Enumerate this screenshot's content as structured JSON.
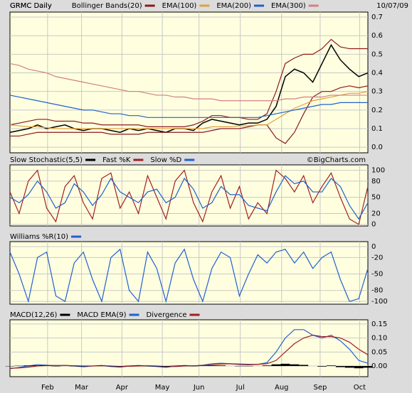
{
  "chart_data": [
    {
      "type": "line",
      "title": "GRMC Daily",
      "date": "10/07/09",
      "xlim": [
        0,
        39
      ],
      "ylim": [
        -0.03,
        0.727
      ],
      "yticks": [
        {
          "value": 0,
          "label": "0.0"
        },
        0.1,
        0.2,
        0.3,
        0.4,
        0.5,
        0.6,
        0.7
      ],
      "grid": true,
      "series": [
        {
          "name": "GRMC Daily",
          "color": "#000000",
          "values": [
            0.08,
            0.09,
            0.1,
            0.12,
            0.1,
            0.11,
            0.12,
            0.1,
            0.09,
            0.1,
            0.1,
            0.09,
            0.08,
            0.1,
            0.09,
            0.1,
            0.09,
            0.08,
            0.1,
            0.1,
            0.09,
            0.13,
            0.15,
            0.14,
            0.13,
            0.12,
            0.13,
            0.13,
            0.15,
            0.22,
            0.38,
            0.42,
            0.4,
            0.35,
            0.45,
            0.55,
            0.47,
            0.42,
            0.38,
            0.4
          ]
        },
        {
          "name": "Bollinger Bands(20)",
          "color": "#8b1a1a",
          "values": [
            0.12,
            0.13,
            0.14,
            0.15,
            0.15,
            0.14,
            0.14,
            0.14,
            0.13,
            0.13,
            0.12,
            0.12,
            0.12,
            0.12,
            0.12,
            0.11,
            0.11,
            0.11,
            0.11,
            0.11,
            0.12,
            0.14,
            0.17,
            0.17,
            0.16,
            0.16,
            0.15,
            0.15,
            0.18,
            0.3,
            0.45,
            0.48,
            0.5,
            0.5,
            0.53,
            0.58,
            0.54,
            0.53,
            0.53,
            0.53
          ],
          "lower": [
            0.06,
            0.06,
            0.07,
            0.08,
            0.08,
            0.08,
            0.08,
            0.08,
            0.08,
            0.08,
            0.08,
            0.07,
            0.07,
            0.07,
            0.07,
            0.08,
            0.08,
            0.08,
            0.08,
            0.08,
            0.08,
            0.08,
            0.09,
            0.1,
            0.1,
            0.1,
            0.11,
            0.12,
            0.12,
            0.05,
            0.02,
            0.08,
            0.18,
            0.27,
            0.3,
            0.3,
            0.32,
            0.33,
            0.32,
            0.33
          ]
        },
        {
          "name": "EMA(100)",
          "color": "#e0a040",
          "values": [
            0.12,
            0.115,
            0.11,
            0.11,
            0.105,
            0.1,
            0.1,
            0.1,
            0.1,
            0.1,
            0.1,
            0.1,
            0.1,
            0.1,
            0.1,
            0.1,
            0.1,
            0.1,
            0.1,
            0.1,
            0.1,
            0.1,
            0.11,
            0.11,
            0.11,
            0.115,
            0.115,
            0.12,
            0.12,
            0.15,
            0.18,
            0.21,
            0.23,
            0.25,
            0.26,
            0.27,
            0.28,
            0.29,
            0.29,
            0.3
          ]
        },
        {
          "name": "EMA(200)",
          "color": "#2060d0",
          "values": [
            0.28,
            0.27,
            0.26,
            0.25,
            0.24,
            0.23,
            0.22,
            0.21,
            0.2,
            0.2,
            0.19,
            0.18,
            0.18,
            0.17,
            0.17,
            0.16,
            0.16,
            0.16,
            0.16,
            0.16,
            0.16,
            0.16,
            0.16,
            0.16,
            0.16,
            0.16,
            0.16,
            0.16,
            0.17,
            0.18,
            0.19,
            0.2,
            0.21,
            0.22,
            0.23,
            0.23,
            0.24,
            0.24,
            0.24,
            0.24
          ]
        },
        {
          "name": "EMA(300)",
          "color": "#d08080",
          "values": [
            0.45,
            0.44,
            0.42,
            0.41,
            0.4,
            0.38,
            0.37,
            0.36,
            0.35,
            0.34,
            0.33,
            0.32,
            0.31,
            0.3,
            0.3,
            0.29,
            0.28,
            0.28,
            0.27,
            0.27,
            0.26,
            0.26,
            0.26,
            0.25,
            0.25,
            0.25,
            0.25,
            0.25,
            0.25,
            0.25,
            0.26,
            0.26,
            0.27,
            0.27,
            0.27,
            0.28,
            0.28,
            0.28,
            0.28,
            0.28
          ]
        }
      ]
    },
    {
      "type": "line",
      "title": "Slow Stochastic(5,5)",
      "credit": "©BigCharts.com",
      "xlim": [
        0,
        39
      ],
      "ylim": [
        -3,
        110
      ],
      "yticks": [
        0,
        20,
        50,
        80,
        100
      ],
      "grid": true,
      "series": [
        {
          "name": "Fast %K",
          "color": "#a02020",
          "values": [
            60,
            20,
            80,
            100,
            30,
            5,
            70,
            90,
            40,
            10,
            85,
            95,
            30,
            60,
            20,
            90,
            50,
            10,
            80,
            100,
            40,
            5,
            60,
            90,
            30,
            70,
            10,
            40,
            20,
            100,
            85,
            60,
            90,
            40,
            70,
            95,
            50,
            10,
            0,
            70
          ]
        },
        {
          "name": "Slow %D",
          "color": "#2060d0",
          "values": [
            50,
            40,
            55,
            80,
            60,
            30,
            40,
            75,
            60,
            35,
            55,
            85,
            60,
            50,
            40,
            60,
            65,
            40,
            50,
            85,
            65,
            30,
            40,
            70,
            55,
            55,
            35,
            30,
            25,
            60,
            90,
            75,
            80,
            60,
            60,
            85,
            70,
            35,
            10,
            40
          ]
        }
      ]
    },
    {
      "type": "line",
      "title": "Williams %R(10)",
      "xlim": [
        0,
        39
      ],
      "ylim": [
        -105,
        9
      ],
      "yticks": [
        0,
        -20,
        -50,
        -80,
        -100
      ],
      "grid": true,
      "series": [
        {
          "name": "",
          "color": "#2060d0",
          "values": [
            -10,
            -50,
            -100,
            -20,
            -10,
            -90,
            -100,
            -30,
            -10,
            -60,
            -100,
            -20,
            -5,
            -80,
            -100,
            -10,
            -40,
            -100,
            -30,
            -5,
            -60,
            -100,
            -40,
            -10,
            -20,
            -90,
            -50,
            -15,
            -30,
            -10,
            -5,
            -30,
            -10,
            -40,
            -20,
            -10,
            -60,
            -100,
            -95,
            -40
          ]
        }
      ]
    },
    {
      "type": "line",
      "title": "MACD(12,26)",
      "xlim": [
        0,
        39
      ],
      "ylim": [
        -0.038,
        0.165
      ],
      "yticks": [
        {
          "value": 0,
          "label": "0.00"
        },
        0.05,
        {
          "value": 0.1,
          "label": "0.10"
        },
        0.15
      ],
      "grid": true,
      "xticks": [
        {
          "value": 4.1,
          "label": "Feb"
        },
        {
          "value": 7.8,
          "label": "Mar"
        },
        {
          "value": 12.2,
          "label": "Apr"
        },
        {
          "value": 16.6,
          "label": "May"
        },
        {
          "value": 20.6,
          "label": "Jun"
        },
        {
          "value": 25.1,
          "label": "Jul"
        },
        {
          "value": 29.6,
          "label": "Aug"
        },
        {
          "value": 33.8,
          "label": "Sep"
        },
        {
          "value": 38.1,
          "label": "Oct"
        }
      ],
      "series": [
        {
          "name": "MACD EMA(9)",
          "color": "#2060d0",
          "values": [
            -0.01,
            -0.005,
            0.0,
            0.005,
            0.003,
            0.0,
            0.002,
            0.0,
            -0.003,
            0.0,
            0.002,
            -0.002,
            -0.004,
            0.0,
            0.002,
            0.0,
            -0.002,
            -0.005,
            0.0,
            0.002,
            0.0,
            0.003,
            0.008,
            0.01,
            0.008,
            0.005,
            0.004,
            0.006,
            0.012,
            0.05,
            0.1,
            0.13,
            0.13,
            0.11,
            0.1,
            0.11,
            0.09,
            0.06,
            0.02,
            0.01
          ]
        },
        {
          "name": "Divergence",
          "color": "#a02020",
          "values": [
            -0.008,
            -0.007,
            -0.004,
            0.0,
            0.002,
            0.002,
            0.002,
            0.001,
            0.0,
            0.0,
            0.001,
            0.0,
            -0.002,
            -0.001,
            0.0,
            0.001,
            0.0,
            -0.002,
            -0.002,
            0.0,
            0.001,
            0.002,
            0.004,
            0.007,
            0.008,
            0.007,
            0.006,
            0.006,
            0.008,
            0.02,
            0.05,
            0.08,
            0.1,
            0.11,
            0.105,
            0.105,
            0.1,
            0.085,
            0.06,
            0.04
          ]
        },
        {
          "name": "",
          "type": "bar",
          "color": "#000000",
          "values": [
            -0.001,
            0.001,
            0.002,
            0.002,
            0.001,
            -0.001,
            0.0,
            -0.001,
            -0.001,
            0.0,
            0.001,
            -0.001,
            -0.001,
            0.001,
            0.001,
            -0.001,
            -0.001,
            -0.002,
            0.001,
            0.001,
            -0.001,
            0.001,
            0.002,
            0.002,
            0.0,
            -0.001,
            -0.001,
            0.0,
            0.002,
            0.006,
            0.008,
            0.006,
            0.004,
            0.0,
            -0.002,
            0.002,
            -0.004,
            -0.006,
            -0.008,
            -0.006
          ]
        }
      ]
    }
  ]
}
